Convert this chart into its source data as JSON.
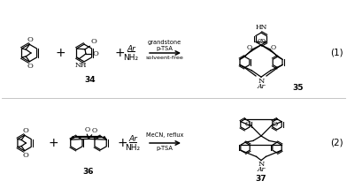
{
  "bg_color": "#ffffff",
  "text_color": "#000000",
  "line_color": "#000000",
  "line_width": 0.9,
  "reaction1": {
    "reagent1": "grandstone",
    "reagent2": "p-TSA",
    "reagent3": "solveent-free",
    "amine1": "Ar",
    "amine2": "NH₂",
    "label_r2": "34",
    "label_prod": "35",
    "eq": "(1)"
  },
  "reaction2": {
    "reagent1": "MeCN, reflux",
    "reagent2": "p-TSA",
    "amine1": "Ar",
    "amine2": "NH₂",
    "label_r2": "36",
    "label_prod": "37",
    "eq": "(2)"
  }
}
